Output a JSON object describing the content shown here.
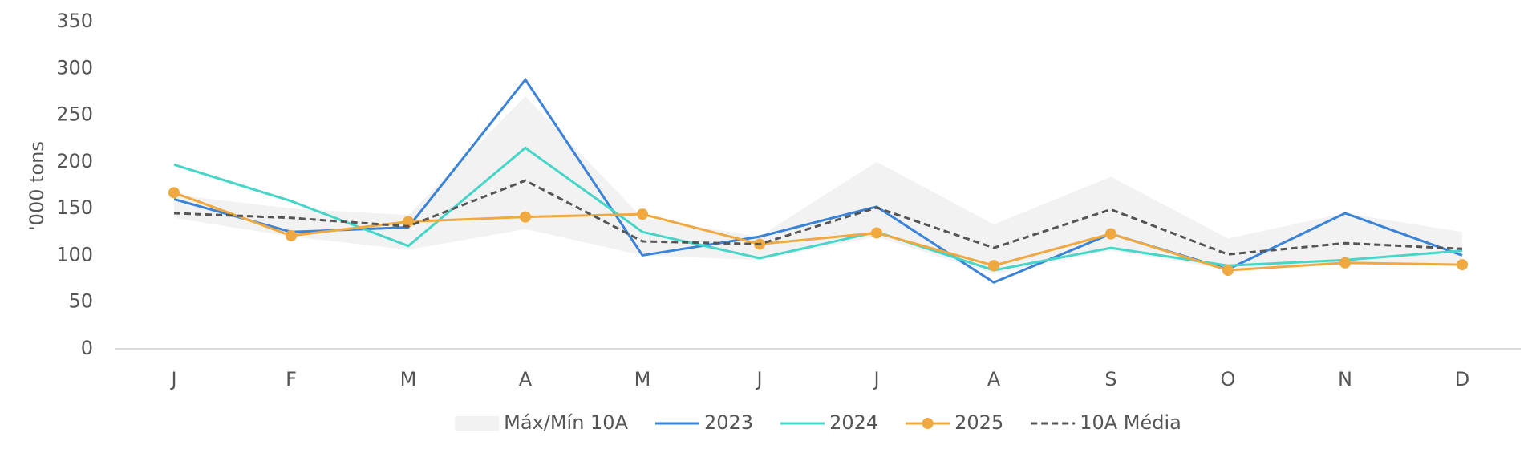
{
  "chart_data": {
    "type": "line",
    "y_label": "'000 tons",
    "categories": [
      "J",
      "F",
      "M",
      "A",
      "M",
      "J",
      "J",
      "A",
      "S",
      "O",
      "N",
      "D"
    ],
    "ylim": [
      0,
      350
    ],
    "yticks": [
      0,
      50,
      100,
      150,
      200,
      250,
      300,
      350
    ],
    "grid": false,
    "legend": "bottom",
    "band": {
      "name": "Máx/Mín 10A",
      "color": "#f2f2f2",
      "high": [
        165,
        150,
        143,
        270,
        140,
        120,
        200,
        133,
        184,
        118,
        145,
        125
      ],
      "low": [
        140,
        120,
        106,
        128,
        100,
        95,
        120,
        80,
        105,
        85,
        90,
        90
      ]
    },
    "series": [
      {
        "name": "2023",
        "color": "#3a83d8",
        "style": "solid",
        "markers": false,
        "values": [
          160,
          125,
          130,
          288,
          100,
          120,
          152,
          71,
          123,
          85,
          145,
          100
        ]
      },
      {
        "name": "2024",
        "color": "#46d6c8",
        "style": "solid",
        "markers": false,
        "values": [
          197,
          158,
          110,
          215,
          125,
          97,
          125,
          84,
          108,
          89,
          95,
          105
        ]
      },
      {
        "name": "2025",
        "color": "#f0a940",
        "style": "solid",
        "markers": true,
        "values": [
          167,
          121,
          136,
          141,
          144,
          112,
          124,
          89,
          123,
          84,
          92,
          90
        ]
      },
      {
        "name": "10A Média",
        "color": "#555555",
        "style": "dashed",
        "markers": false,
        "values": [
          145,
          140,
          131,
          180,
          115,
          112,
          151,
          108,
          149,
          101,
          113,
          107
        ]
      }
    ]
  }
}
